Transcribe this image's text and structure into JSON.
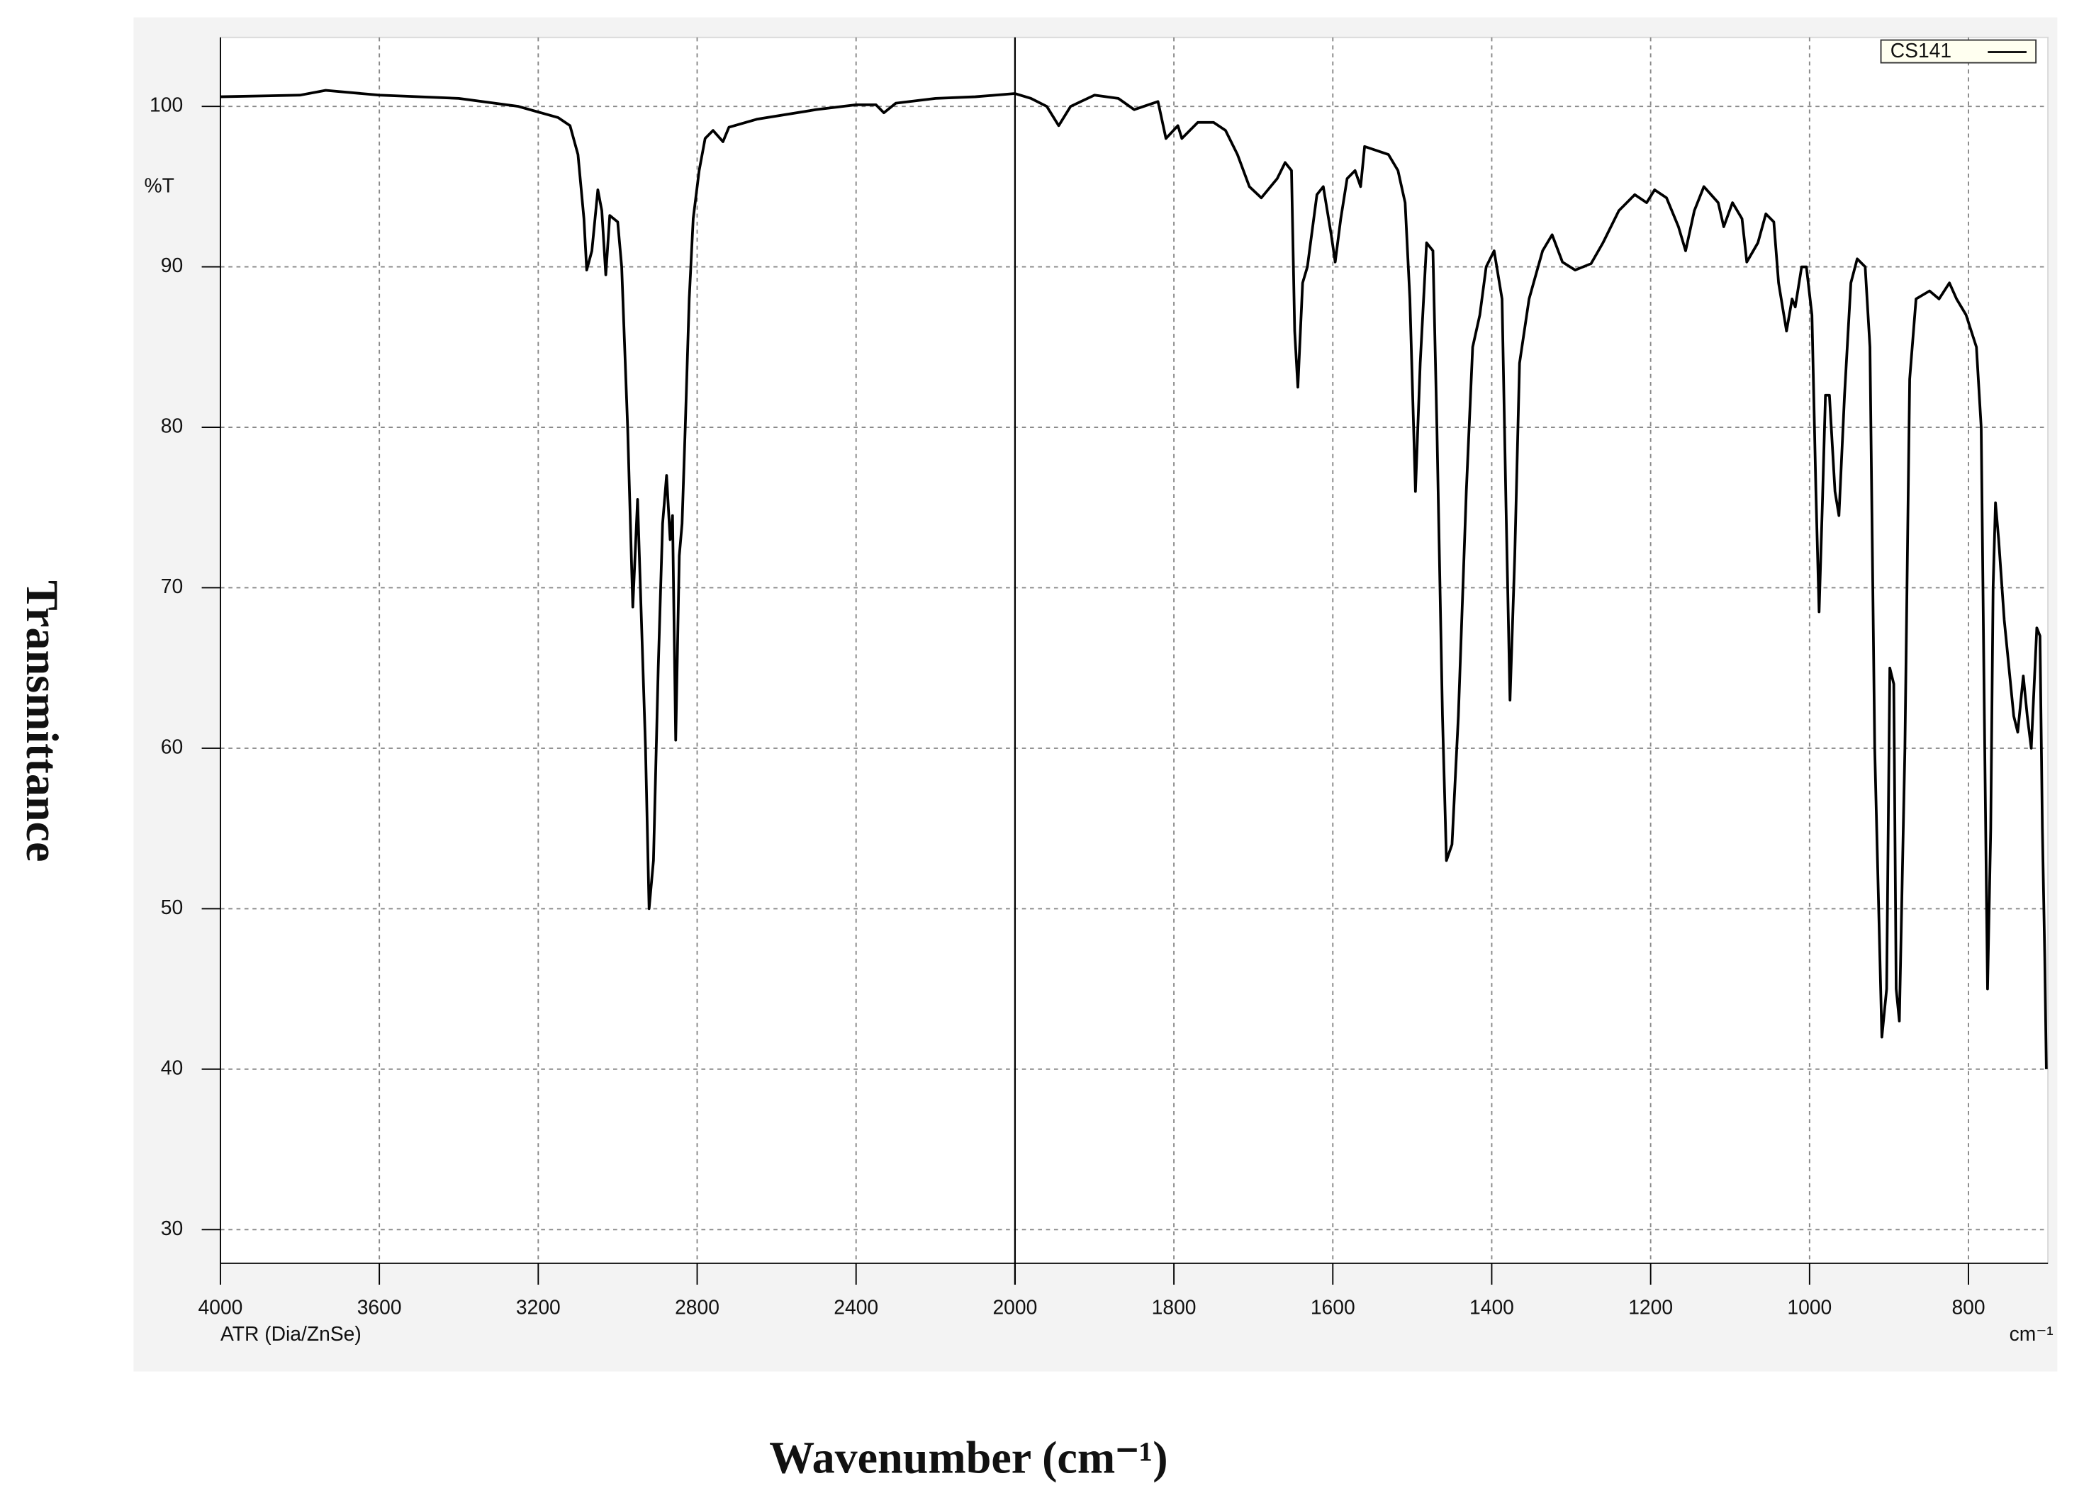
{
  "chart_data": {
    "type": "line",
    "y_title": "Transmittance",
    "x_title": "Wavenumber (cm⁻¹)",
    "y_unit_label": "%T",
    "x_unit_label": "cm⁻¹",
    "x_note": "ATR (Dia/ZnSe)",
    "xlim": [
      4000,
      700
    ],
    "x_break": 2000,
    "xticks": [
      4000,
      3600,
      3200,
      2800,
      2400,
      2000,
      1800,
      1600,
      1400,
      1200,
      1000,
      800
    ],
    "ylim": [
      27.9,
      104.3
    ],
    "yticks": [
      30,
      40,
      50,
      60,
      70,
      80,
      90,
      100
    ],
    "grid": true,
    "legend": "top-right",
    "x": [
      4000,
      3800,
      3735,
      3600,
      3400,
      3250,
      3150,
      3120,
      3100,
      3085,
      3078,
      3065,
      3050,
      3040,
      3030,
      3020,
      3000,
      2990,
      2975,
      2962,
      2950,
      2930,
      2921,
      2910,
      2898,
      2887,
      2877,
      2868,
      2862,
      2854,
      2845,
      2838,
      2830,
      2820,
      2810,
      2795,
      2780,
      2760,
      2735,
      2720,
      2650,
      2500,
      2400,
      2350,
      2330,
      2300,
      2200,
      2100,
      2000,
      1980,
      1960,
      1945,
      1930,
      1900,
      1870,
      1850,
      1820,
      1810,
      1795,
      1790,
      1770,
      1750,
      1735,
      1720,
      1705,
      1690,
      1670,
      1660,
      1652,
      1648,
      1644,
      1638,
      1632,
      1620,
      1612,
      1602,
      1597,
      1590,
      1582,
      1572,
      1565,
      1560,
      1530,
      1518,
      1509,
      1503,
      1496,
      1490,
      1482,
      1474,
      1469,
      1462,
      1457,
      1450,
      1442,
      1432,
      1424,
      1415,
      1407,
      1397,
      1387,
      1382,
      1377,
      1371,
      1365,
      1353,
      1336,
      1324,
      1311,
      1295,
      1275,
      1260,
      1240,
      1220,
      1205,
      1195,
      1180,
      1165,
      1156,
      1145,
      1133,
      1115,
      1108,
      1097,
      1085,
      1079,
      1065,
      1055,
      1045,
      1039,
      1029,
      1022,
      1018,
      1010,
      1004,
      997,
      992,
      988,
      984,
      980,
      975,
      968,
      963,
      956,
      948,
      940,
      930,
      924,
      918,
      909,
      903,
      899,
      894,
      891,
      887,
      880,
      874,
      866,
      849,
      837,
      824,
      815,
      803,
      790,
      784,
      780,
      776,
      772,
      769,
      766,
      762,
      755,
      743,
      738,
      731,
      726,
      721,
      714,
      710,
      707,
      704,
      702
    ],
    "series": [
      {
        "name": "CS141",
        "color": "#000000",
        "values": [
          100.6,
          100.7,
          101.0,
          100.7,
          100.5,
          100.0,
          99.3,
          98.8,
          97.0,
          93.0,
          89.8,
          91.0,
          94.8,
          93.5,
          89.5,
          93.2,
          92.8,
          90.0,
          80.0,
          68.8,
          75.5,
          60.0,
          50.0,
          53.0,
          65.0,
          74.0,
          77.0,
          73.0,
          74.5,
          60.5,
          72.0,
          74.0,
          80.0,
          88.0,
          93.0,
          96.0,
          98.0,
          98.5,
          97.8,
          98.7,
          99.2,
          99.8,
          100.1,
          100.1,
          99.6,
          100.2,
          100.5,
          100.6,
          100.8,
          100.5,
          100.0,
          98.8,
          100.0,
          100.7,
          100.5,
          99.8,
          100.3,
          98.0,
          98.8,
          98.0,
          99.0,
          99.0,
          98.5,
          97.0,
          95.0,
          94.3,
          95.5,
          96.5,
          96.0,
          86.0,
          82.5,
          89.0,
          90.0,
          94.5,
          95.0,
          92.0,
          90.3,
          93.0,
          95.5,
          96.0,
          95.0,
          97.5,
          97.0,
          96.0,
          94.0,
          88.0,
          76.0,
          84.0,
          91.5,
          91.0,
          80.0,
          62.0,
          53.0,
          54.0,
          62.0,
          76.0,
          85.0,
          87.0,
          90.0,
          91.0,
          88.0,
          75.0,
          63.0,
          72.0,
          84.0,
          88.0,
          91.0,
          92.0,
          90.3,
          89.8,
          90.2,
          91.5,
          93.5,
          94.5,
          94.0,
          94.8,
          94.3,
          92.5,
          91.0,
          93.5,
          95.0,
          94.0,
          92.5,
          94.0,
          93.0,
          90.3,
          91.5,
          93.3,
          92.8,
          89.0,
          86.0,
          88.0,
          87.5,
          90.0,
          90.0,
          87.0,
          76.0,
          68.5,
          75.0,
          82.0,
          82.0,
          76.0,
          74.5,
          82.0,
          89.0,
          90.5,
          90.0,
          85.0,
          60.0,
          42.0,
          45.0,
          65.0,
          64.0,
          45.0,
          43.0,
          60.0,
          83.0,
          88.0,
          88.5,
          88.0,
          89.0,
          88.0,
          87.0,
          85.0,
          80.0,
          62.0,
          45.0,
          55.0,
          70.0,
          75.3,
          73.0,
          68.0,
          62.0,
          61.0,
          64.5,
          62.0,
          60.0,
          67.5,
          67.0,
          55.0,
          47.0,
          40.0
        ]
      }
    ]
  }
}
